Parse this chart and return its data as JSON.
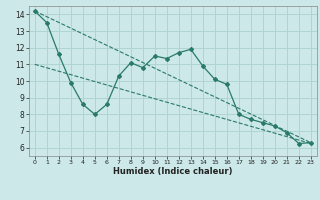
{
  "title": "",
  "xlabel": "Humidex (Indice chaleur)",
  "bg_color": "#cce8e8",
  "grid_color": "#b0d4d4",
  "line_color": "#2a7a6a",
  "xlim": [
    -0.5,
    23.5
  ],
  "ylim": [
    5.5,
    14.5
  ],
  "xticks": [
    0,
    1,
    2,
    3,
    4,
    5,
    6,
    7,
    8,
    9,
    10,
    11,
    12,
    13,
    14,
    15,
    16,
    17,
    18,
    19,
    20,
    21,
    22,
    23
  ],
  "yticks": [
    6,
    7,
    8,
    9,
    10,
    11,
    12,
    13,
    14
  ],
  "line1_x": [
    0,
    1,
    2,
    3,
    4,
    5,
    6,
    7,
    8,
    9,
    10,
    11,
    12,
    13,
    14,
    15,
    16,
    17,
    18,
    19,
    20,
    21,
    22,
    23
  ],
  "line1_y": [
    14.2,
    13.5,
    11.6,
    9.9,
    8.6,
    8.0,
    8.6,
    10.3,
    11.1,
    10.8,
    11.5,
    11.35,
    11.7,
    11.9,
    10.9,
    10.1,
    9.8,
    8.0,
    7.7,
    7.5,
    7.3,
    6.9,
    6.25,
    6.3
  ],
  "line2_x": [
    0,
    23
  ],
  "line2_y": [
    14.2,
    6.3
  ],
  "line3_x": [
    0,
    23
  ],
  "line3_y": [
    11.0,
    6.25
  ]
}
